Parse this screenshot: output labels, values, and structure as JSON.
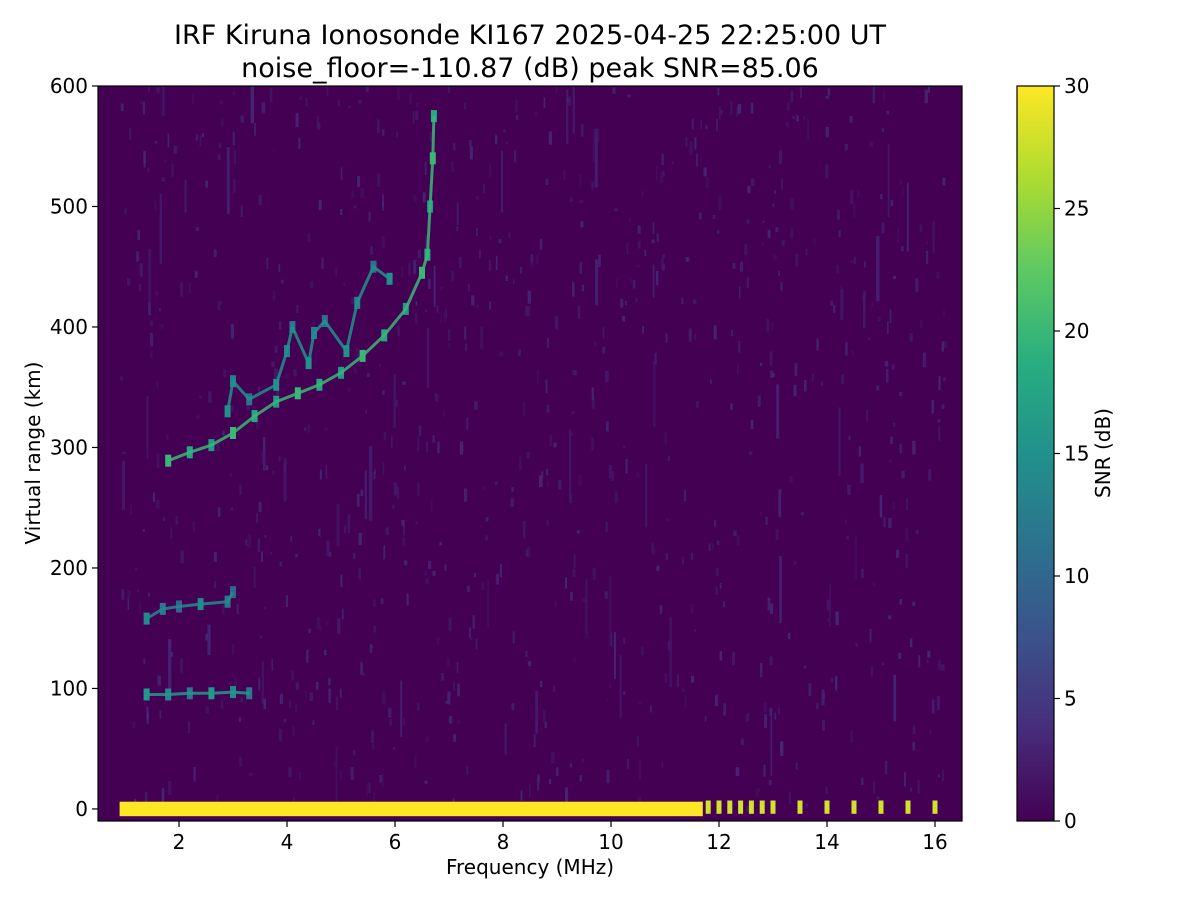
{
  "chart_data": {
    "type": "heatmap",
    "title": "IRF Kiruna Ionosonde KI167 2025-04-25 22:25:00  UT",
    "subtitle": "noise_floor=-110.87 (dB) peak SNR=85.06",
    "xlabel": "Frequency (MHz)",
    "ylabel": "Virtual range (km)",
    "colorbar_label": "SNR (dB)",
    "colormap": "viridis",
    "background_color": "#440154",
    "xlim": [
      0.5,
      16.5
    ],
    "ylim": [
      -10,
      600
    ],
    "clim": [
      0,
      30
    ],
    "x_ticks": [
      2,
      4,
      6,
      8,
      10,
      12,
      14,
      16
    ],
    "y_ticks": [
      0,
      100,
      200,
      300,
      400,
      500,
      600
    ],
    "colorbar_ticks": [
      0,
      5,
      10,
      15,
      20,
      25,
      30
    ],
    "sounding_frequency_range": [
      0.9,
      16.2
    ],
    "features": [
      {
        "name": "F-region trace",
        "points": [
          [
            1.8,
            289
          ],
          [
            2.2,
            296
          ],
          [
            2.6,
            302
          ],
          [
            3.0,
            312
          ],
          [
            3.4,
            326
          ],
          [
            3.8,
            338
          ],
          [
            4.2,
            345
          ],
          [
            4.6,
            352
          ],
          [
            5.0,
            362
          ],
          [
            5.4,
            376
          ],
          [
            5.8,
            393
          ],
          [
            6.2,
            415
          ],
          [
            6.5,
            445
          ],
          [
            6.6,
            460
          ],
          [
            6.65,
            500
          ],
          [
            6.7,
            540
          ],
          [
            6.72,
            575
          ]
        ],
        "snr": 20
      },
      {
        "name": "spread echo patches",
        "points": [
          [
            2.9,
            330
          ],
          [
            3.0,
            355
          ],
          [
            3.3,
            340
          ],
          [
            3.8,
            352
          ],
          [
            4.0,
            380
          ],
          [
            4.1,
            400
          ],
          [
            4.4,
            370
          ],
          [
            4.5,
            395
          ],
          [
            4.7,
            405
          ],
          [
            5.1,
            380
          ],
          [
            5.3,
            420
          ],
          [
            5.6,
            450
          ],
          [
            5.9,
            440
          ]
        ],
        "snr": 15
      },
      {
        "name": "multi-hop echo",
        "points": [
          [
            1.4,
            158
          ],
          [
            1.7,
            166
          ],
          [
            2.0,
            168
          ],
          [
            2.4,
            170
          ],
          [
            2.9,
            172
          ],
          [
            3.0,
            180
          ]
        ],
        "snr": 14
      },
      {
        "name": "E-layer echo",
        "points": [
          [
            1.4,
            95
          ],
          [
            1.8,
            95
          ],
          [
            2.2,
            96
          ],
          [
            2.6,
            96
          ],
          [
            3.0,
            97
          ],
          [
            3.3,
            96
          ]
        ],
        "snr": 16
      },
      {
        "name": "ground interference band",
        "points": [
          [
            0.9,
            0
          ],
          [
            11.7,
            0
          ]
        ],
        "snr": 30
      },
      {
        "name": "discrete channels",
        "x": [
          11.8,
          12.0,
          12.2,
          12.4,
          12.6,
          12.8,
          13.0,
          13.5,
          14.0,
          14.5,
          15.0,
          15.5,
          16.0
        ],
        "snr": 28
      }
    ]
  }
}
